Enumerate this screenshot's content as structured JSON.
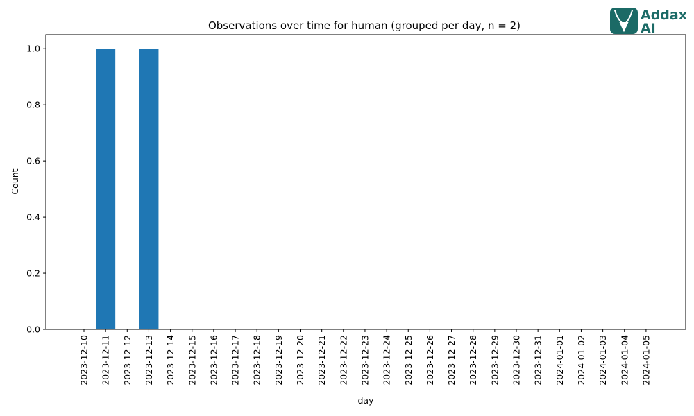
{
  "logo": {
    "line1": "Addax",
    "line2": "AI",
    "color": "#1b6a66"
  },
  "chart_data": {
    "type": "bar",
    "title": "Observations over time for human (grouped per day, n = 2)",
    "xlabel": "day",
    "ylabel": "Count",
    "ylim": [
      0,
      1.05
    ],
    "yticks": [
      "0.0",
      "0.2",
      "0.4",
      "0.6",
      "0.8",
      "1.0"
    ],
    "grid": false,
    "bar_color": "#1f77b4",
    "categories": [
      "2023-12-10",
      "2023-12-11",
      "2023-12-12",
      "2023-12-13",
      "2023-12-14",
      "2023-12-15",
      "2023-12-16",
      "2023-12-17",
      "2023-12-18",
      "2023-12-19",
      "2023-12-20",
      "2023-12-21",
      "2023-12-22",
      "2023-12-23",
      "2023-12-24",
      "2023-12-25",
      "2023-12-26",
      "2023-12-27",
      "2023-12-28",
      "2023-12-29",
      "2023-12-30",
      "2023-12-31",
      "2024-01-01",
      "2024-01-02",
      "2024-01-03",
      "2024-01-04",
      "2024-01-05"
    ],
    "values": [
      0,
      1,
      0,
      1,
      0,
      0,
      0,
      0,
      0,
      0,
      0,
      0,
      0,
      0,
      0,
      0,
      0,
      0,
      0,
      0,
      0,
      0,
      0,
      0,
      0,
      0,
      0
    ]
  }
}
